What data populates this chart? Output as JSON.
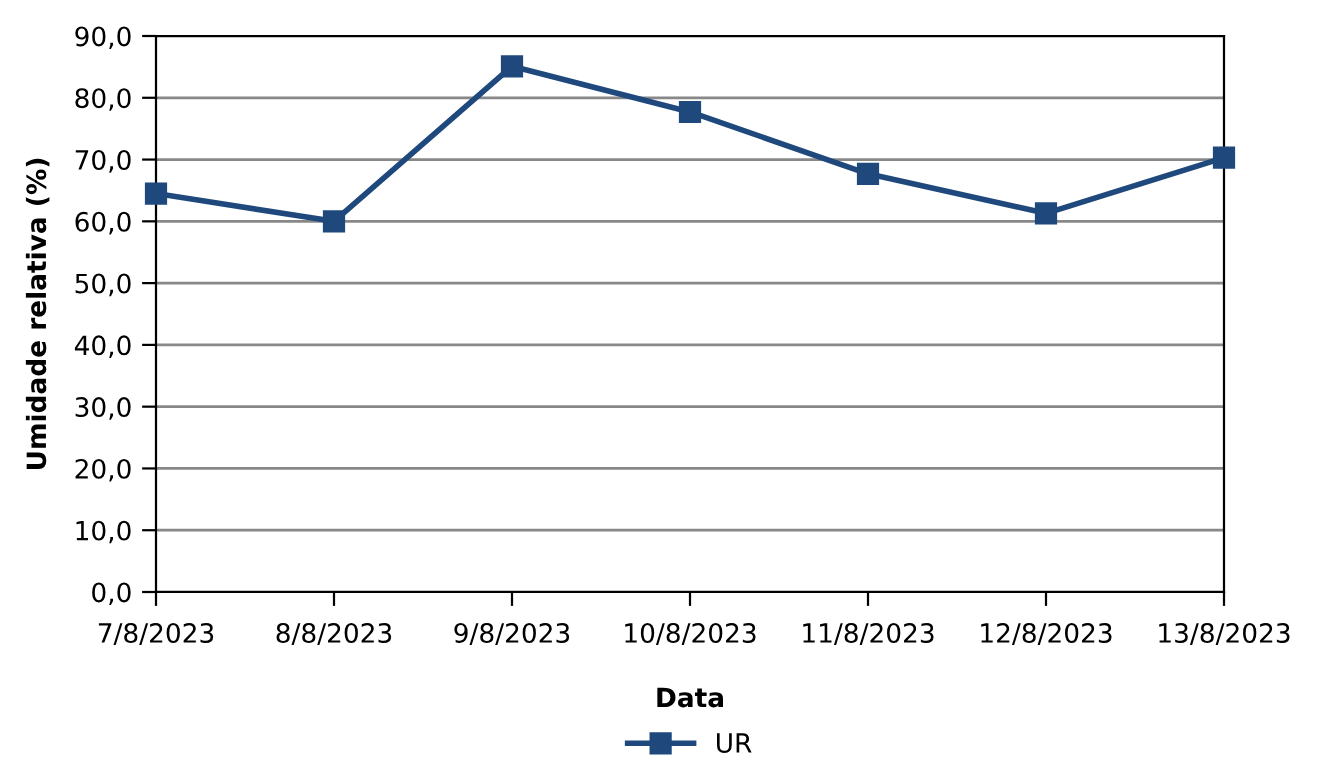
{
  "chart_data": {
    "type": "line",
    "xlabel": "Data",
    "ylabel": "Umidade relativa (%)",
    "categories": [
      "7/8/2023",
      "8/8/2023",
      "9/8/2023",
      "10/8/2023",
      "11/8/2023",
      "12/8/2023",
      "13/8/2023"
    ],
    "series": [
      {
        "name": "UR",
        "color": "#1f497d",
        "values": [
          64.5,
          60.0,
          85.1,
          77.7,
          67.7,
          61.3,
          70.3
        ]
      }
    ],
    "ylim": [
      0,
      90
    ],
    "yticks": [
      {
        "value": 0,
        "label": "0,0"
      },
      {
        "value": 10,
        "label": "10,0"
      },
      {
        "value": 20,
        "label": "20,0"
      },
      {
        "value": 30,
        "label": "30,0"
      },
      {
        "value": 40,
        "label": "40,0"
      },
      {
        "value": 50,
        "label": "50,0"
      },
      {
        "value": 60,
        "label": "60,0"
      },
      {
        "value": 70,
        "label": "70,0"
      },
      {
        "value": 80,
        "label": "80,0"
      },
      {
        "value": 90,
        "label": "90,0"
      }
    ],
    "grid": "y",
    "legend": "bottom",
    "marker": "square",
    "line_style": "solid"
  }
}
